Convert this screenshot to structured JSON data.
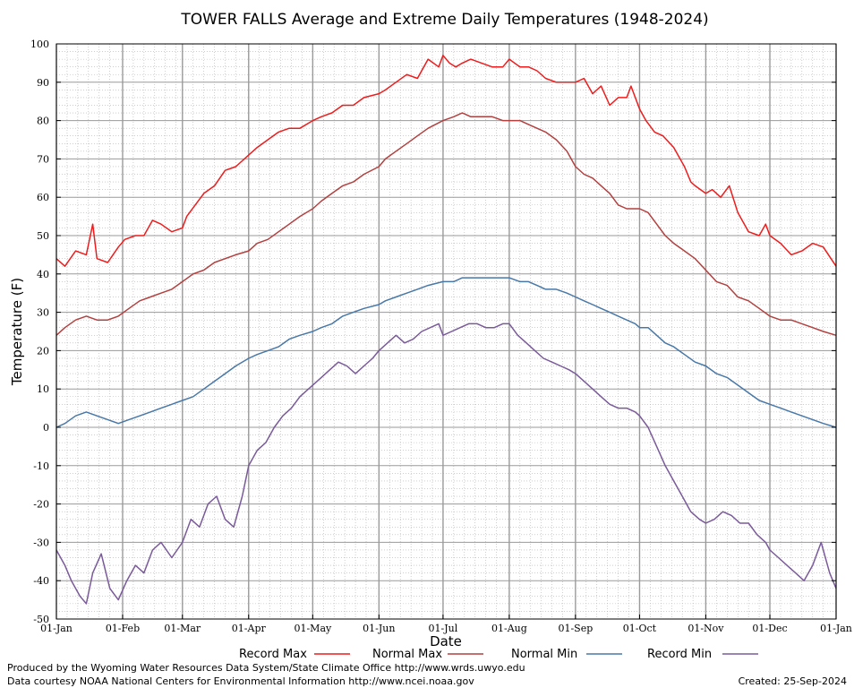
{
  "chart_data": {
    "type": "line",
    "title": "TOWER FALLS Average and Extreme Daily Temperatures (1948-2024)",
    "xlabel": "Date",
    "ylabel": "Temperature (F)",
    "ylim": [
      -50,
      100
    ],
    "xlim": [
      1,
      366
    ],
    "grid": true,
    "y_ticks": [
      -50,
      -40,
      -30,
      -20,
      -10,
      0,
      10,
      20,
      30,
      40,
      50,
      60,
      70,
      80,
      90,
      100
    ],
    "x_ticks": [
      {
        "day": 1,
        "label": "01-Jan"
      },
      {
        "day": 32,
        "label": "01-Feb"
      },
      {
        "day": 60,
        "label": "01-Mar"
      },
      {
        "day": 91,
        "label": "01-Apr"
      },
      {
        "day": 121,
        "label": "01-May"
      },
      {
        "day": 152,
        "label": "01-Jun"
      },
      {
        "day": 182,
        "label": "01-Jul"
      },
      {
        "day": 213,
        "label": "01-Aug"
      },
      {
        "day": 244,
        "label": "01-Sep"
      },
      {
        "day": 274,
        "label": "01-Oct"
      },
      {
        "day": 305,
        "label": "01-Nov"
      },
      {
        "day": 335,
        "label": "01-Dec"
      },
      {
        "day": 366,
        "label": "01-Jan"
      }
    ],
    "legend_position": "bottom",
    "series": [
      {
        "name": "Record Max",
        "color": "#ee1c1c",
        "x": [
          1,
          5,
          10,
          15,
          18,
          20,
          25,
          30,
          33,
          38,
          42,
          46,
          50,
          55,
          60,
          62,
          66,
          70,
          75,
          80,
          85,
          91,
          95,
          100,
          105,
          110,
          115,
          121,
          125,
          130,
          135,
          140,
          145,
          152,
          155,
          160,
          165,
          170,
          175,
          180,
          182,
          185,
          188,
          191,
          195,
          200,
          205,
          210,
          213,
          218,
          222,
          226,
          230,
          235,
          240,
          244,
          248,
          252,
          256,
          260,
          264,
          268,
          270,
          274,
          277,
          281,
          285,
          290,
          295,
          298,
          300,
          305,
          308,
          312,
          316,
          320,
          325,
          330,
          333,
          335,
          340,
          345,
          350,
          355,
          360,
          366
        ],
        "y": [
          44,
          42,
          46,
          45,
          53,
          44,
          43,
          47,
          49,
          50,
          50,
          54,
          53,
          51,
          52,
          55,
          58,
          61,
          63,
          67,
          68,
          71,
          73,
          75,
          77,
          78,
          78,
          80,
          81,
          82,
          84,
          84,
          86,
          87,
          88,
          90,
          92,
          91,
          96,
          94,
          97,
          95,
          94,
          95,
          96,
          95,
          94,
          94,
          96,
          94,
          94,
          93,
          91,
          90,
          90,
          90,
          91,
          87,
          89,
          84,
          86,
          86,
          89,
          83,
          80,
          77,
          76,
          73,
          68,
          64,
          63,
          61,
          62,
          60,
          63,
          56,
          51,
          50,
          53,
          50,
          48,
          45,
          46,
          48,
          47,
          42
        ]
      },
      {
        "name": "Normal Max",
        "color": "#b2403f",
        "x": [
          1,
          5,
          10,
          15,
          20,
          25,
          30,
          35,
          40,
          45,
          50,
          55,
          60,
          65,
          70,
          75,
          80,
          85,
          91,
          95,
          100,
          105,
          110,
          115,
          121,
          125,
          130,
          135,
          140,
          145,
          152,
          155,
          160,
          165,
          170,
          175,
          182,
          187,
          191,
          195,
          200,
          205,
          210,
          213,
          218,
          222,
          226,
          230,
          235,
          240,
          244,
          248,
          252,
          256,
          260,
          264,
          268,
          272,
          274,
          278,
          282,
          286,
          290,
          295,
          300,
          305,
          310,
          315,
          320,
          325,
          330,
          335,
          340,
          345,
          350,
          355,
          360,
          366
        ],
        "y": [
          24,
          26,
          28,
          29,
          28,
          28,
          29,
          31,
          33,
          34,
          35,
          36,
          38,
          40,
          41,
          43,
          44,
          45,
          46,
          48,
          49,
          51,
          53,
          55,
          57,
          59,
          61,
          63,
          64,
          66,
          68,
          70,
          72,
          74,
          76,
          78,
          80,
          81,
          82,
          81,
          81,
          81,
          80,
          80,
          80,
          79,
          78,
          77,
          75,
          72,
          68,
          66,
          65,
          63,
          61,
          58,
          57,
          57,
          57,
          56,
          53,
          50,
          48,
          46,
          44,
          41,
          38,
          37,
          34,
          33,
          31,
          29,
          28,
          28,
          27,
          26,
          25,
          24
        ]
      },
      {
        "name": "Normal Min",
        "color": "#4878a8",
        "x": [
          1,
          5,
          10,
          15,
          20,
          25,
          30,
          35,
          40,
          45,
          50,
          55,
          60,
          65,
          70,
          75,
          80,
          85,
          91,
          95,
          100,
          105,
          110,
          115,
          121,
          125,
          130,
          135,
          140,
          145,
          152,
          155,
          160,
          165,
          170,
          175,
          182,
          187,
          191,
          195,
          200,
          205,
          210,
          213,
          218,
          222,
          226,
          230,
          235,
          240,
          244,
          248,
          252,
          256,
          260,
          264,
          268,
          272,
          274,
          278,
          282,
          286,
          290,
          295,
          300,
          305,
          310,
          315,
          320,
          325,
          330,
          335,
          340,
          345,
          350,
          355,
          360,
          366
        ],
        "y": [
          0,
          1,
          3,
          4,
          3,
          2,
          1,
          2,
          3,
          4,
          5,
          6,
          7,
          8,
          10,
          12,
          14,
          16,
          18,
          19,
          20,
          21,
          23,
          24,
          25,
          26,
          27,
          29,
          30,
          31,
          32,
          33,
          34,
          35,
          36,
          37,
          38,
          38,
          39,
          39,
          39,
          39,
          39,
          39,
          38,
          38,
          37,
          36,
          36,
          35,
          34,
          33,
          32,
          31,
          30,
          29,
          28,
          27,
          26,
          26,
          24,
          22,
          21,
          19,
          17,
          16,
          14,
          13,
          11,
          9,
          7,
          6,
          5,
          4,
          3,
          2,
          1,
          0
        ]
      },
      {
        "name": "Record Min",
        "color": "#7a5a9a",
        "x": [
          1,
          5,
          8,
          12,
          15,
          18,
          22,
          26,
          30,
          34,
          38,
          42,
          46,
          50,
          55,
          60,
          64,
          68,
          72,
          76,
          80,
          84,
          88,
          91,
          95,
          99,
          103,
          107,
          111,
          115,
          119,
          121,
          125,
          129,
          133,
          137,
          141,
          145,
          149,
          152,
          156,
          160,
          164,
          168,
          172,
          176,
          180,
          182,
          186,
          190,
          194,
          198,
          202,
          206,
          210,
          213,
          217,
          221,
          225,
          229,
          233,
          237,
          241,
          244,
          248,
          252,
          256,
          260,
          264,
          268,
          272,
          274,
          278,
          282,
          286,
          290,
          294,
          298,
          302,
          305,
          309,
          313,
          317,
          321,
          325,
          329,
          333,
          335,
          339,
          343,
          347,
          351,
          355,
          359,
          363,
          366
        ],
        "y": [
          -32,
          -36,
          -40,
          -44,
          -46,
          -38,
          -33,
          -42,
          -45,
          -40,
          -36,
          -38,
          -32,
          -30,
          -34,
          -30,
          -24,
          -26,
          -20,
          -18,
          -24,
          -26,
          -18,
          -10,
          -6,
          -4,
          0,
          3,
          5,
          8,
          10,
          11,
          13,
          15,
          17,
          16,
          14,
          16,
          18,
          20,
          22,
          24,
          22,
          23,
          25,
          26,
          27,
          24,
          25,
          26,
          27,
          27,
          26,
          26,
          27,
          27,
          24,
          22,
          20,
          18,
          17,
          16,
          15,
          14,
          12,
          10,
          8,
          6,
          5,
          5,
          4,
          3,
          0,
          -5,
          -10,
          -14,
          -18,
          -22,
          -24,
          -25,
          -24,
          -22,
          -23,
          -25,
          -25,
          -28,
          -30,
          -32,
          -34,
          -36,
          -38,
          -40,
          -36,
          -30,
          -38,
          -42
        ]
      }
    ]
  },
  "footer": {
    "produced_by": "Produced by the Wyoming Water Resources Data System/State Climate Office http://www.wrds.uwyo.edu",
    "data_courtesy": "Data courtesy NOAA National Centers for Environmental Information http://www.ncei.noaa.gov",
    "created": "Created:  25-Sep-2024"
  }
}
